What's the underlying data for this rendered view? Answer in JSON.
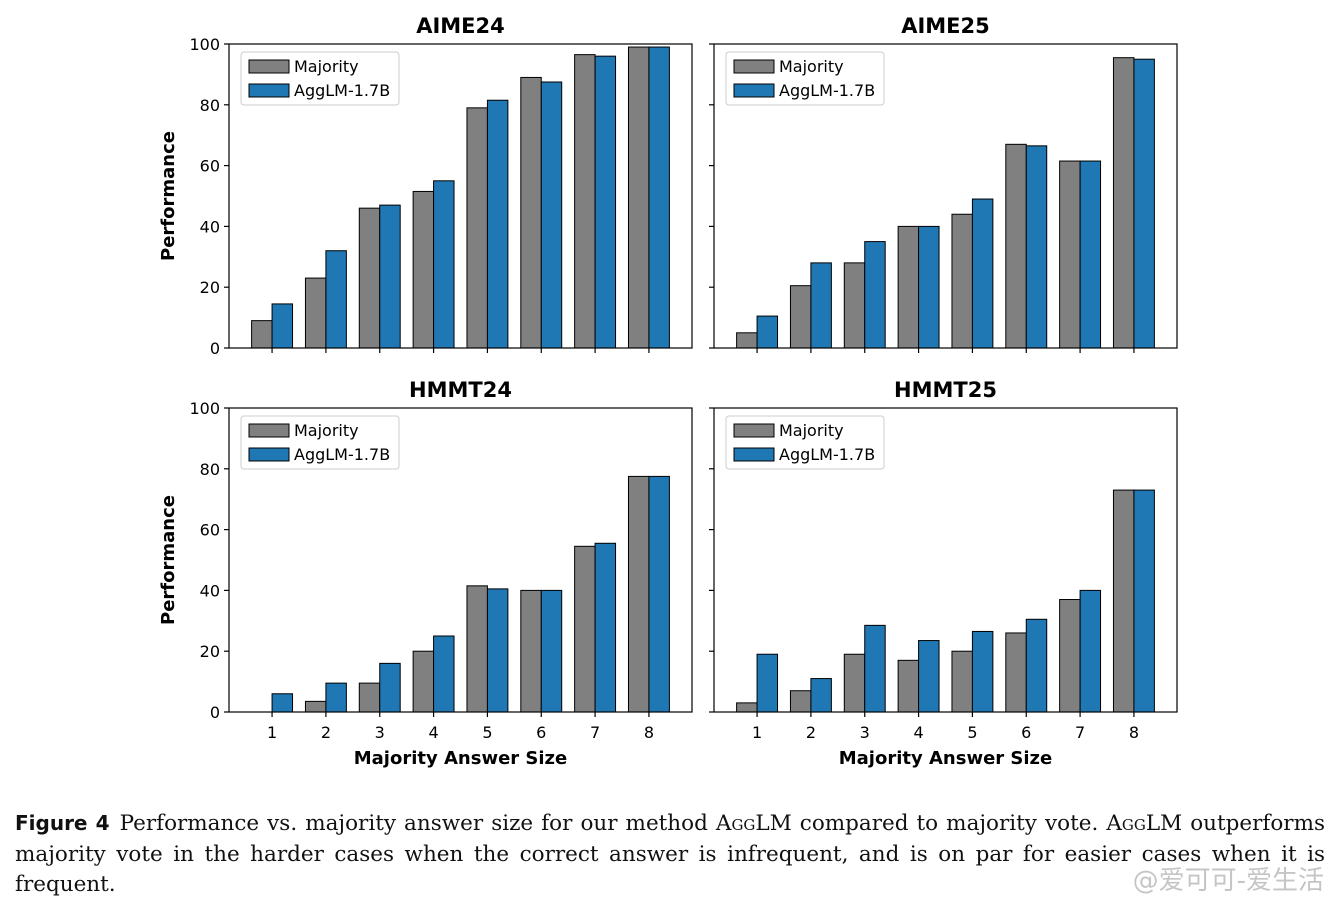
{
  "chart_data": [
    {
      "type": "bar",
      "title": "AIME24",
      "ylabel": "Performance",
      "xlabel": "",
      "categories": [
        "1",
        "2",
        "3",
        "4",
        "5",
        "6",
        "7",
        "8"
      ],
      "ylim": [
        0,
        100
      ],
      "yticks": [
        "0",
        "20",
        "40",
        "60",
        "80",
        "100"
      ],
      "series": [
        {
          "name": "Majority",
          "color": "#808080",
          "values": [
            9,
            23,
            46,
            51.5,
            79,
            89,
            96.5,
            99
          ]
        },
        {
          "name": "AggLM-1.7B",
          "color": "#1f77b4",
          "values": [
            14.5,
            32,
            47,
            55,
            81.5,
            87.5,
            96,
            99
          ]
        }
      ],
      "legend": "top-left"
    },
    {
      "type": "bar",
      "title": "AIME25",
      "ylabel": "",
      "xlabel": "",
      "categories": [
        "1",
        "2",
        "3",
        "4",
        "5",
        "6",
        "7",
        "8"
      ],
      "ylim": [
        0,
        100
      ],
      "series": [
        {
          "name": "Majority",
          "color": "#808080",
          "values": [
            5,
            20.5,
            28,
            40,
            44,
            67,
            61.5,
            95.5
          ]
        },
        {
          "name": "AggLM-1.7B",
          "color": "#1f77b4",
          "values": [
            10.5,
            28,
            35,
            40,
            49,
            66.5,
            61.5,
            95
          ]
        }
      ],
      "legend": "top-left"
    },
    {
      "type": "bar",
      "title": "HMMT24",
      "ylabel": "Performance",
      "xlabel": "Majority Answer Size",
      "categories": [
        "1",
        "2",
        "3",
        "4",
        "5",
        "6",
        "7",
        "8"
      ],
      "xticks": [
        "1",
        "2",
        "3",
        "4",
        "5",
        "6",
        "7",
        "8"
      ],
      "ylim": [
        0,
        100
      ],
      "yticks": [
        "0",
        "20",
        "40",
        "60",
        "80",
        "100"
      ],
      "series": [
        {
          "name": "Majority",
          "color": "#808080",
          "values": [
            0,
            3.5,
            9.5,
            20,
            41.5,
            40,
            54.5,
            77.5
          ]
        },
        {
          "name": "AggLM-1.7B",
          "color": "#1f77b4",
          "values": [
            6,
            9.5,
            16,
            25,
            40.5,
            40,
            55.5,
            77.5
          ]
        }
      ],
      "legend": "top-left"
    },
    {
      "type": "bar",
      "title": "HMMT25",
      "ylabel": "",
      "xlabel": "Majority Answer Size",
      "categories": [
        "1",
        "2",
        "3",
        "4",
        "5",
        "6",
        "7",
        "8"
      ],
      "xticks": [
        "1",
        "2",
        "3",
        "4",
        "5",
        "6",
        "7",
        "8"
      ],
      "ylim": [
        0,
        100
      ],
      "series": [
        {
          "name": "Majority",
          "color": "#808080",
          "values": [
            3,
            7,
            19,
            17,
            20,
            26,
            37,
            73
          ]
        },
        {
          "name": "AggLM-1.7B",
          "color": "#1f77b4",
          "values": [
            19,
            11,
            28.5,
            23.5,
            26.5,
            30.5,
            40,
            73
          ]
        }
      ],
      "legend": "top-left"
    }
  ],
  "caption": {
    "label": "Figure 4",
    "text_before": "Performance vs.  majority answer size for our method ",
    "method": "AggLM",
    "text_middle": " compared to majority vote. ",
    "method2": "AggLM",
    "text_after": " outperforms majority vote in the harder cases when the correct answer is infrequent, and is on par for easier cases when it is frequent."
  },
  "watermark": "@爱可可-爱生活"
}
